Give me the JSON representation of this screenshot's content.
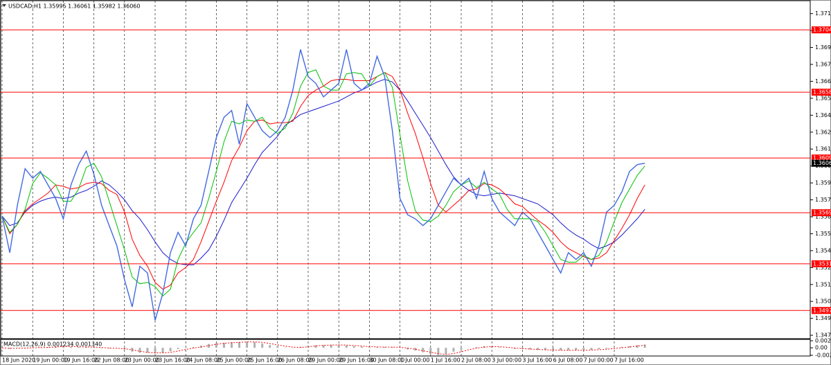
{
  "chart_data": [
    {
      "type": "line",
      "title": "USDCAD,H1  1.35995 1.36061 1.35982 1.36060",
      "categories": [
        "18 Jun 2020",
        null,
        null,
        null,
        "19 Jun 00:00",
        null,
        null,
        null,
        "19 Jun 16:00",
        null,
        null,
        null,
        "22 Jun 08:00",
        null,
        null,
        null,
        "23 Jun 00:00",
        null,
        null,
        null,
        "23 Jun 16:00",
        null,
        null,
        null,
        "24 Jun 08:00",
        null,
        null,
        null,
        "25 Jun 00:00",
        null,
        null,
        null,
        "25 Jun 16:00",
        null,
        null,
        null,
        "26 Jun 08:00",
        null,
        null,
        null,
        "29 Jun 00:00",
        null,
        null,
        null,
        "29 Jun 16:00",
        null,
        null,
        null,
        "30 Jun 08:00",
        null,
        null,
        null,
        "1 Jul 00:00",
        null,
        null,
        null,
        "1 Jul 16:00",
        null,
        null,
        null,
        "2 Jul 08:00",
        null,
        null,
        null,
        "3 Jul 00:00",
        null,
        null,
        null,
        "3 Jul 16:00",
        null,
        null,
        null,
        "6 Jul 08:00",
        null,
        null,
        null,
        "7 Jul 00:00",
        null,
        null,
        null,
        "7 Jul 16:00",
        null,
        null,
        null,
        null
      ],
      "series": [
        {
          "color": "#1a1acc",
          "values": [
            1.3567,
            1.356,
            1.3562,
            1.357,
            1.3575,
            1.3578,
            1.358,
            1.3581,
            1.358,
            1.3581,
            1.3584,
            1.3586,
            1.3589,
            1.3593,
            1.359,
            1.3585,
            1.3579,
            1.3571,
            1.3565,
            1.3557,
            1.3548,
            1.354,
            1.3535,
            1.3532,
            1.3531,
            1.3531,
            1.3536,
            1.3542,
            1.3552,
            1.3564,
            1.3577,
            1.3586,
            1.3595,
            1.3605,
            1.3614,
            1.362,
            1.3626,
            1.3634,
            1.3638,
            1.3642,
            1.3644,
            1.3646,
            1.3648,
            1.365,
            1.3652,
            1.3655,
            1.3658,
            1.366,
            1.3663,
            1.3666,
            1.3668,
            1.3666,
            1.366,
            1.3652,
            1.3643,
            1.3634,
            1.3625,
            1.3615,
            1.3605,
            1.3596,
            1.359,
            1.3586,
            1.3583,
            1.3582,
            1.3583,
            1.3584,
            1.3583,
            1.3582,
            1.358,
            1.3578,
            1.3576,
            1.3572,
            1.3568,
            1.3562,
            1.3557,
            1.3553,
            1.355,
            1.3546,
            1.3543,
            1.3545,
            1.3548,
            1.3553,
            1.3559,
            1.3565,
            1.3572
          ]
        },
        {
          "color": "#ff0000",
          "values": [
            1.3567,
            1.3554,
            1.3561,
            1.3571,
            1.3576,
            1.358,
            1.3584,
            1.359,
            1.3589,
            1.3587,
            1.3588,
            1.3591,
            1.3592,
            1.3591,
            1.3586,
            1.3583,
            1.357,
            1.355,
            1.3538,
            1.353,
            1.3518,
            1.3513,
            1.3516,
            1.3525,
            1.3529,
            1.3535,
            1.3548,
            1.3563,
            1.3578,
            1.3592,
            1.3608,
            1.3618,
            1.363,
            1.3637,
            1.3638,
            1.3635,
            1.3636,
            1.3636,
            1.3637,
            1.3648,
            1.3656,
            1.366,
            1.3663,
            1.3667,
            1.3668,
            1.3668,
            1.3667,
            1.3667,
            1.3667,
            1.367,
            1.3673,
            1.367,
            1.366,
            1.3643,
            1.3628,
            1.361,
            1.3591,
            1.3575,
            1.357,
            1.3575,
            1.358,
            1.3586,
            1.3587,
            1.3591,
            1.359,
            1.3587,
            1.3582,
            1.3576,
            1.3574,
            1.3569,
            1.3564,
            1.356,
            1.3555,
            1.3548,
            1.3543,
            1.354,
            1.3537,
            1.3535,
            1.3536,
            1.354,
            1.3549,
            1.3558,
            1.3568,
            1.358,
            1.359
          ]
        },
        {
          "color": "#00c000",
          "values": [
            1.3567,
            1.3555,
            1.3561,
            1.3572,
            1.3591,
            1.3599,
            1.3595,
            1.359,
            1.3578,
            1.3578,
            1.3587,
            1.3603,
            1.3606,
            1.3596,
            1.3578,
            1.356,
            1.3542,
            1.3522,
            1.3517,
            1.3518,
            1.3515,
            1.3508,
            1.3513,
            1.3535,
            1.3547,
            1.3555,
            1.3562,
            1.358,
            1.36,
            1.3622,
            1.3637,
            1.3635,
            1.3638,
            1.3637,
            1.364,
            1.3632,
            1.3628,
            1.3632,
            1.3643,
            1.3663,
            1.3673,
            1.3675,
            1.3663,
            1.366,
            1.366,
            1.3672,
            1.3673,
            1.3672,
            1.3663,
            1.367,
            1.3673,
            1.3662,
            1.3627,
            1.3593,
            1.3571,
            1.3564,
            1.3563,
            1.3567,
            1.3575,
            1.3585,
            1.359,
            1.3593,
            1.3588,
            1.3592,
            1.3587,
            1.3583,
            1.3572,
            1.3565,
            1.3565,
            1.3565,
            1.3563,
            1.3555,
            1.3545,
            1.3535,
            1.3533,
            1.3533,
            1.3538,
            1.3535,
            1.3538,
            1.3548,
            1.3563,
            1.3577,
            1.3587,
            1.3597,
            1.3604
          ]
        },
        {
          "color": "#4169e1",
          "values": [
            1.3567,
            1.354,
            1.3575,
            1.3602,
            1.3595,
            1.36,
            1.359,
            1.358,
            1.3565,
            1.359,
            1.3605,
            1.3615,
            1.3598,
            1.3575,
            1.356,
            1.3545,
            1.352,
            1.35,
            1.353,
            1.3525,
            1.349,
            1.351,
            1.354,
            1.3555,
            1.3545,
            1.3565,
            1.3575,
            1.36,
            1.3625,
            1.364,
            1.3645,
            1.362,
            1.365,
            1.364,
            1.363,
            1.3625,
            1.363,
            1.364,
            1.366,
            1.369,
            1.367,
            1.3665,
            1.3655,
            1.366,
            1.3665,
            1.369,
            1.3665,
            1.366,
            1.3665,
            1.3685,
            1.367,
            1.363,
            1.358,
            1.3568,
            1.3565,
            1.356,
            1.3565,
            1.3575,
            1.3585,
            1.3595,
            1.359,
            1.3595,
            1.358,
            1.36,
            1.358,
            1.357,
            1.3565,
            1.356,
            1.357,
            1.3565,
            1.3555,
            1.3545,
            1.3535,
            1.3525,
            1.354,
            1.3535,
            1.354,
            1.353,
            1.3545,
            1.357,
            1.3575,
            1.3585,
            1.36,
            1.3605,
            1.3606
          ]
        }
      ],
      "ylim": [
        1.3477,
        1.3724
      ],
      "yticks": [
        1.37165,
        {
          "value": 1.3704,
          "label": "1.37040"
        },
        1.36915,
        {
          "value": 1.3679,
          "label": "1.36790"
        },
        1.36665,
        {
          "value": 1.3654,
          "label": "1.36540"
        },
        1.36415,
        {
          "value": 1.3629,
          "label": "1.36290"
        },
        1.36165,
        {
          "value": 1.3604,
          "label": "1.36040"
        },
        1.35915,
        {
          "value": 1.3579,
          "label": "1.35790"
        },
        1.35665,
        {
          "value": 1.3554,
          "label": "1.35540"
        },
        1.35415,
        {
          "value": 1.3529,
          "label": "1.35290"
        },
        1.35165,
        {
          "value": 1.3504,
          "label": "1.35040"
        },
        1.34915,
        {
          "value": 1.3479,
          "label": "1.34790"
        }
      ],
      "levels": [
        1.37045,
        1.36585,
        1.36099,
        1.35695,
        1.35318,
        1.34973
      ],
      "level_color": "#ff0000",
      "current": {
        "value": 1.3606,
        "label": "1.36060"
      },
      "grid": true
    },
    {
      "type": "bar",
      "title": "MACD(12,26,9) 0.001234 0.001340",
      "color": "#b0b0b0",
      "values": [
        0,
        -0.00042,
        -7e-05,
        7e-05,
        7e-05,
        0.00014,
        0.00028,
        0.00063,
        0.00063,
        0.00042,
        0.00028,
        0.00035,
        0.00021,
        -0.00014,
        -0.00028,
        -0.00014,
        -0.00063,
        -0.00147,
        -0.00189,
        -0.00189,
        -0.0021,
        -0.00189,
        -0.00133,
        -0.00049,
        -0.00014,
        0.00028,
        0.00084,
        0.00147,
        0.00182,
        0.00196,
        0.00217,
        0.00224,
        0.00245,
        0.00224,
        0.00168,
        0.00105,
        0.0007,
        0.00014,
        -7e-05,
        0.00042,
        0.00084,
        0.00098,
        0.00105,
        0.00119,
        0.00112,
        0.00091,
        0.00063,
        0.00049,
        0.00028,
        0.00028,
        0.00035,
        0.00028,
        0,
        -0.00063,
        -0.00105,
        -0.00168,
        -0.00238,
        -0.0028,
        -0.00245,
        -0.00147,
        -0.0007,
        0,
        0.00028,
        0.00063,
        0.00049,
        0.00021,
        -7e-05,
        -0.00042,
        -0.00042,
        -0.00063,
        -0.00084,
        -0.00084,
        -0.00091,
        -0.00098,
        -0.00098,
        -0.00091,
        -0.00091,
        -0.00077,
        -0.00049,
        -0.00035,
        7e-05,
        0.00035,
        0.00063,
        0.00105,
        0.00126
      ],
      "signal": [
        0,
        -0.00021,
        -0.00016,
        -0.00014,
        2e-05,
        9e-05,
        0.00016,
        0.00035,
        0.00051,
        0.00056,
        0.00044,
        0.00035,
        0.00028,
        0.00014,
        -7e-05,
        -0.00019,
        -0.00035,
        -0.00075,
        -0.00133,
        -0.00175,
        -0.00196,
        -0.00196,
        -0.00177,
        -0.00124,
        -0.00065,
        -0.00012,
        0.00033,
        0.00086,
        0.00138,
        0.00175,
        0.00198,
        0.00212,
        0.00229,
        0.00231,
        0.00212,
        0.00166,
        0.00114,
        0.00063,
        0.00026,
        0.00016,
        0.0004,
        0.00075,
        0.00096,
        0.00107,
        0.00112,
        0.00107,
        0.00089,
        0.00068,
        0.00047,
        0.00035,
        0.0003,
        0.0003,
        0.00021,
        -0.00012,
        -0.00056,
        -0.00112,
        -0.0017,
        -0.00229,
        -0.00254,
        -0.00224,
        -0.00154,
        -0.00072,
        -0.00014,
        0.0003,
        0.00047,
        0.00044,
        0.00021,
        -9e-05,
        -0.0003,
        -0.00049,
        -0.00063,
        -0.00077,
        -0.00086,
        -0.00091,
        -0.00096,
        -0.00096,
        -0.00093,
        -0.00086,
        -0.00072,
        -0.00054,
        -0.00026,
        2e-05,
        0.00035,
        0.00068,
        0.00098
      ],
      "signal_color": "#ff0000",
      "ylim": [
        -0.0029,
        0.002736
      ],
      "yticks": [
        0.002736,
        {
          "value": 0,
          "label": "0.00"
        },
        {
          "value": -0.0029,
          "label": "-0.00290"
        }
      ]
    }
  ]
}
